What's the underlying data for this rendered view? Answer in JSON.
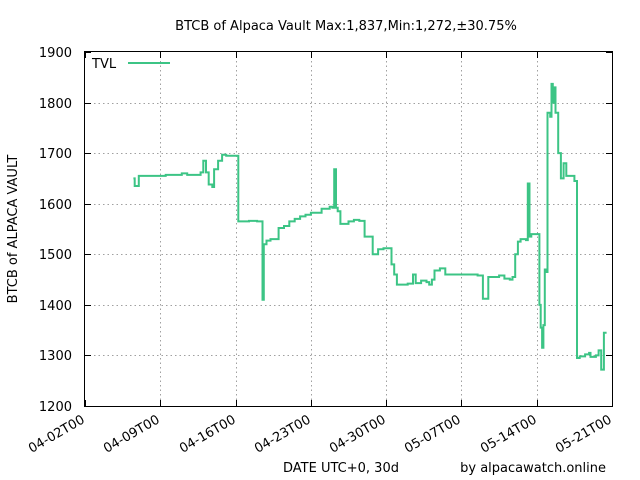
{
  "chart_data": {
    "type": "line",
    "title": "BTCB of Alpaca Vault Max:1,837,Min:1,272,±30.75%",
    "xlabel": "DATE UTC+0, 30d",
    "ylabel": "BTCB of ALPACA VAULT",
    "credit": "by alpacawatch.online",
    "ylim": [
      1200,
      1900
    ],
    "yticks": [
      1200,
      1300,
      1400,
      1500,
      1600,
      1700,
      1800,
      1900
    ],
    "xlim": [
      "2021-04-02",
      "2021-05-21"
    ],
    "xticks": [
      "04-02T00",
      "04-09T00",
      "04-16T00",
      "04-23T00",
      "04-30T00",
      "05-07T00",
      "05-14T00",
      "05-21T00"
    ],
    "grid": true,
    "legend_position": "top-left",
    "series": [
      {
        "name": "TVL",
        "color": "#3cc485",
        "points": [
          [
            "2021-04-06T12:00",
            1650
          ],
          [
            "2021-04-06T15:00",
            1635
          ],
          [
            "2021-04-07T00:00",
            1655
          ],
          [
            "2021-04-09T00:00",
            1655
          ],
          [
            "2021-04-09T12:00",
            1657
          ],
          [
            "2021-04-11T00:00",
            1660
          ],
          [
            "2021-04-11T12:00",
            1657
          ],
          [
            "2021-04-12T18:00",
            1662
          ],
          [
            "2021-04-13T00:00",
            1685
          ],
          [
            "2021-04-13T06:00",
            1662
          ],
          [
            "2021-04-13T12:00",
            1638
          ],
          [
            "2021-04-13T20:00",
            1633
          ],
          [
            "2021-04-14T00:00",
            1668
          ],
          [
            "2021-04-14T09:00",
            1685
          ],
          [
            "2021-04-14T18:00",
            1697
          ],
          [
            "2021-04-15T03:00",
            1695
          ],
          [
            "2021-04-16T00:00",
            1695
          ],
          [
            "2021-04-16T06:00",
            1565
          ],
          [
            "2021-04-17T06:00",
            1566
          ],
          [
            "2021-04-18T00:00",
            1565
          ],
          [
            "2021-04-18T06:00",
            1565
          ],
          [
            "2021-04-18T12:00",
            1410
          ],
          [
            "2021-04-18T15:00",
            1520
          ],
          [
            "2021-04-18T21:00",
            1527
          ],
          [
            "2021-04-19T06:00",
            1530
          ],
          [
            "2021-04-20T00:00",
            1552
          ],
          [
            "2021-04-20T12:00",
            1556
          ],
          [
            "2021-04-21T00:00",
            1565
          ],
          [
            "2021-04-21T12:00",
            1570
          ],
          [
            "2021-04-22T00:00",
            1575
          ],
          [
            "2021-04-22T12:00",
            1578
          ],
          [
            "2021-04-23T00:00",
            1582
          ],
          [
            "2021-04-24T00:00",
            1590
          ],
          [
            "2021-04-24T18:00",
            1594
          ],
          [
            "2021-04-25T00:00",
            1592
          ],
          [
            "2021-04-25T04:00",
            1668
          ],
          [
            "2021-04-25T08:00",
            1592
          ],
          [
            "2021-04-25T12:00",
            1585
          ],
          [
            "2021-04-25T18:00",
            1560
          ],
          [
            "2021-04-26T12:00",
            1565
          ],
          [
            "2021-04-27T00:00",
            1568
          ],
          [
            "2021-04-27T12:00",
            1566
          ],
          [
            "2021-04-28T00:00",
            1535
          ],
          [
            "2021-04-28T12:00",
            1535
          ],
          [
            "2021-04-28T18:00",
            1500
          ],
          [
            "2021-04-29T06:00",
            1510
          ],
          [
            "2021-04-29T18:00",
            1512
          ],
          [
            "2021-04-30T12:00",
            1480
          ],
          [
            "2021-04-30T18:00",
            1460
          ],
          [
            "2021-05-01T00:00",
            1440
          ],
          [
            "2021-05-02T00:00",
            1442
          ],
          [
            "2021-05-02T12:00",
            1460
          ],
          [
            "2021-05-02T18:00",
            1443
          ],
          [
            "2021-05-03T06:00",
            1448
          ],
          [
            "2021-05-03T18:00",
            1445
          ],
          [
            "2021-05-04T00:00",
            1440
          ],
          [
            "2021-05-04T06:00",
            1450
          ],
          [
            "2021-05-04T12:00",
            1468
          ],
          [
            "2021-05-05T00:00",
            1472
          ],
          [
            "2021-05-05T12:00",
            1460
          ],
          [
            "2021-05-06T12:00",
            1460
          ],
          [
            "2021-05-07T12:00",
            1460
          ],
          [
            "2021-05-08T12:00",
            1458
          ],
          [
            "2021-05-09T00:00",
            1412
          ],
          [
            "2021-05-09T12:00",
            1455
          ],
          [
            "2021-05-10T12:00",
            1458
          ],
          [
            "2021-05-11T00:00",
            1452
          ],
          [
            "2021-05-11T12:00",
            1450
          ],
          [
            "2021-05-11T18:00",
            1455
          ],
          [
            "2021-05-12T00:00",
            1500
          ],
          [
            "2021-05-12T06:00",
            1525
          ],
          [
            "2021-05-12T12:00",
            1530
          ],
          [
            "2021-05-13T00:00",
            1528
          ],
          [
            "2021-05-13T04:00",
            1640
          ],
          [
            "2021-05-13T08:00",
            1535
          ],
          [
            "2021-05-13T12:00",
            1540
          ],
          [
            "2021-05-14T00:00",
            1540
          ],
          [
            "2021-05-14T06:00",
            1400
          ],
          [
            "2021-05-14T09:00",
            1355
          ],
          [
            "2021-05-14T12:00",
            1315
          ],
          [
            "2021-05-14T15:00",
            1360
          ],
          [
            "2021-05-14T18:00",
            1470
          ],
          [
            "2021-05-14T21:00",
            1465
          ],
          [
            "2021-05-15T00:00",
            1780
          ],
          [
            "2021-05-15T06:00",
            1772
          ],
          [
            "2021-05-15T09:00",
            1837
          ],
          [
            "2021-05-15T12:00",
            1800
          ],
          [
            "2021-05-15T15:00",
            1830
          ],
          [
            "2021-05-15T18:00",
            1780
          ],
          [
            "2021-05-16T00:00",
            1700
          ],
          [
            "2021-05-16T06:00",
            1650
          ],
          [
            "2021-05-16T12:00",
            1680
          ],
          [
            "2021-05-16T18:00",
            1655
          ],
          [
            "2021-05-17T00:00",
            1655
          ],
          [
            "2021-05-17T12:00",
            1645
          ],
          [
            "2021-05-17T18:00",
            1295
          ],
          [
            "2021-05-18T00:00",
            1298
          ],
          [
            "2021-05-18T12:00",
            1302
          ],
          [
            "2021-05-18T21:00",
            1305
          ],
          [
            "2021-05-19T00:00",
            1297
          ],
          [
            "2021-05-19T12:00",
            1300
          ],
          [
            "2021-05-19T18:00",
            1310
          ],
          [
            "2021-05-20T00:00",
            1272
          ],
          [
            "2021-05-20T06:00",
            1345
          ],
          [
            "2021-05-20T12:00",
            1345
          ]
        ]
      }
    ]
  }
}
